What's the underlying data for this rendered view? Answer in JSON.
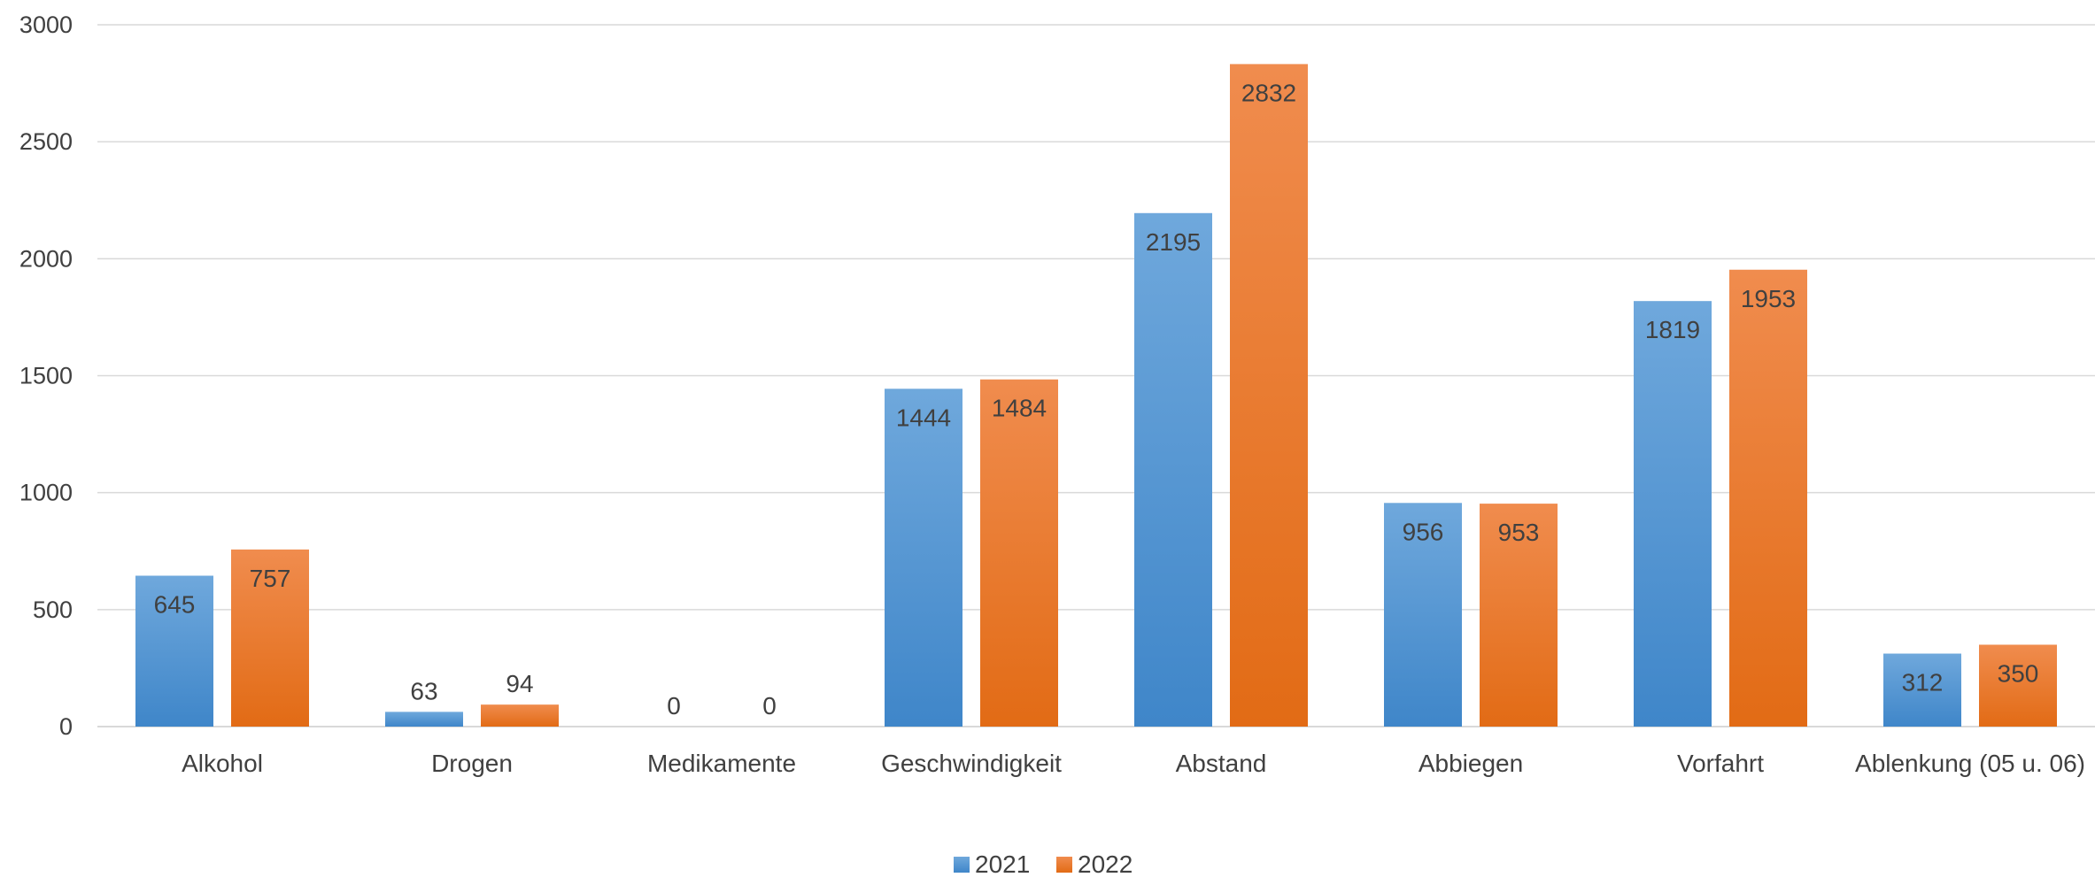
{
  "chart_data": {
    "type": "bar",
    "categories": [
      "Alkohol",
      "Drogen",
      "Medikamente",
      "Geschwindigkeit",
      "Abstand",
      "Abbiegen",
      "Vorfahrt",
      "Ablenkung (05 u. 06)"
    ],
    "series": [
      {
        "name": "2021",
        "values": [
          645,
          63,
          0,
          1444,
          2195,
          956,
          1819,
          312
        ],
        "color": "#5b9bd5",
        "color_top": "#6fa8dc",
        "color_bottom": "#3f86c9"
      },
      {
        "name": "2022",
        "values": [
          757,
          94,
          0,
          1484,
          2832,
          953,
          1953,
          350
        ],
        "color": "#ed7d31",
        "color_top": "#f08c4e",
        "color_bottom": "#e26b15"
      }
    ],
    "yticks": [
      "0",
      "500",
      "1000",
      "1500",
      "2000",
      "2500",
      "3000"
    ],
    "ylim": [
      0,
      3000
    ],
    "grid": true,
    "legend_position": "bottom",
    "title": "",
    "xlabel": "",
    "ylabel": ""
  }
}
